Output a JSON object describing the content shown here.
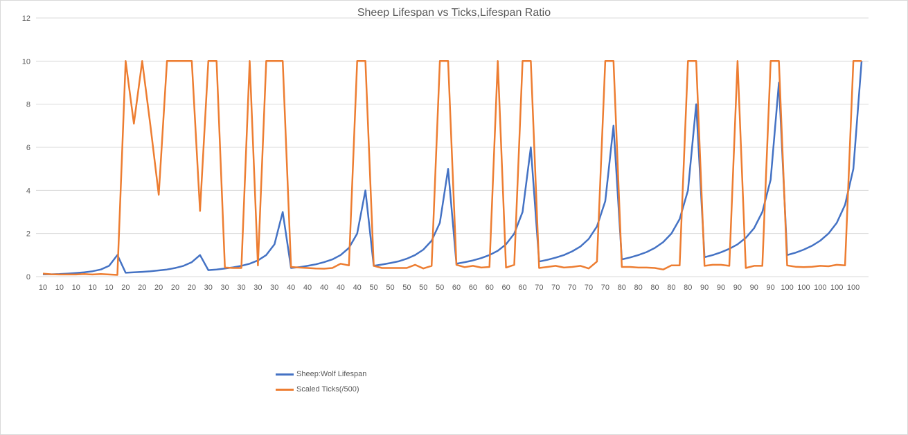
{
  "chart_data": {
    "type": "line",
    "title": "Sheep Lifespan vs Ticks,Lifespan Ratio",
    "xlabel": "",
    "ylabel": "",
    "ylim": [
      0,
      12
    ],
    "yticks": [
      0,
      2,
      4,
      6,
      8,
      10,
      12
    ],
    "grid": true,
    "legend_placement": "bottom-left",
    "categories": [
      "10",
      "10",
      "10",
      "10",
      "10",
      "10",
      "10",
      "10",
      "10",
      "10",
      "20",
      "20",
      "20",
      "20",
      "20",
      "20",
      "20",
      "20",
      "20",
      "20",
      "30",
      "30",
      "30",
      "30",
      "30",
      "30",
      "30",
      "30",
      "30",
      "30",
      "40",
      "40",
      "40",
      "40",
      "40",
      "40",
      "40",
      "40",
      "40",
      "40",
      "50",
      "50",
      "50",
      "50",
      "50",
      "50",
      "50",
      "50",
      "50",
      "50",
      "60",
      "60",
      "60",
      "60",
      "60",
      "60",
      "60",
      "60",
      "60",
      "60",
      "70",
      "70",
      "70",
      "70",
      "70",
      "70",
      "70",
      "70",
      "70",
      "70",
      "80",
      "80",
      "80",
      "80",
      "80",
      "80",
      "80",
      "80",
      "80",
      "80",
      "90",
      "90",
      "90",
      "90",
      "90",
      "90",
      "90",
      "90",
      "90",
      "90",
      "100",
      "100",
      "100",
      "100",
      "100",
      "100",
      "100",
      "100",
      "100",
      "100"
    ],
    "series": [
      {
        "name": "Sheep:Wolf Lifespan",
        "color": "#4472c4",
        "values": [
          0.11,
          0.11,
          0.12,
          0.14,
          0.17,
          0.2,
          0.25,
          0.33,
          0.5,
          1.0,
          0.18,
          0.2,
          0.22,
          0.25,
          0.29,
          0.33,
          0.4,
          0.5,
          0.67,
          1.0,
          0.3,
          0.33,
          0.38,
          0.43,
          0.5,
          0.6,
          0.75,
          1.0,
          1.5,
          3.0,
          0.4,
          0.44,
          0.5,
          0.57,
          0.67,
          0.8,
          1.0,
          1.33,
          2.0,
          4.0,
          0.5,
          0.56,
          0.63,
          0.71,
          0.83,
          1.0,
          1.25,
          1.67,
          2.5,
          5.0,
          0.6,
          0.67,
          0.75,
          0.86,
          1.0,
          1.2,
          1.5,
          2.0,
          3.0,
          6.0,
          0.7,
          0.78,
          0.88,
          1.0,
          1.17,
          1.4,
          1.75,
          2.33,
          3.5,
          7.0,
          0.8,
          0.89,
          1.0,
          1.14,
          1.33,
          1.6,
          2.0,
          2.67,
          4.0,
          8.0,
          0.9,
          1.0,
          1.13,
          1.29,
          1.5,
          1.8,
          2.25,
          3.0,
          4.5,
          9.0,
          1.0,
          1.11,
          1.25,
          1.43,
          1.67,
          2.0,
          2.5,
          3.33,
          5.0,
          10.0
        ]
      },
      {
        "name": "Scaled Ticks(/500)",
        "color": "#ed7d31",
        "values": [
          0.14,
          0.11,
          0.1,
          0.1,
          0.1,
          0.12,
          0.1,
          0.12,
          0.1,
          0.08,
          10,
          7.1,
          10,
          7.0,
          3.8,
          10,
          10,
          10,
          10,
          3.05,
          10,
          10,
          0.42,
          0.4,
          0.4,
          10,
          0.52,
          10,
          10,
          10,
          0.45,
          0.42,
          0.4,
          0.38,
          0.37,
          0.4,
          0.6,
          0.52,
          10,
          10,
          0.5,
          0.4,
          0.4,
          0.4,
          0.4,
          0.55,
          0.38,
          0.5,
          10,
          10,
          0.55,
          0.44,
          0.5,
          0.42,
          0.45,
          10,
          0.42,
          0.55,
          10,
          10,
          0.4,
          0.45,
          0.5,
          0.42,
          0.45,
          0.5,
          0.38,
          0.7,
          10,
          10,
          0.45,
          0.45,
          0.42,
          0.42,
          0.4,
          0.33,
          0.52,
          0.52,
          10,
          10,
          0.5,
          0.55,
          0.55,
          0.5,
          10,
          0.4,
          0.5,
          0.5,
          10,
          10,
          0.52,
          0.46,
          0.44,
          0.46,
          0.5,
          0.48,
          0.55,
          0.52,
          10,
          10
        ]
      }
    ]
  }
}
